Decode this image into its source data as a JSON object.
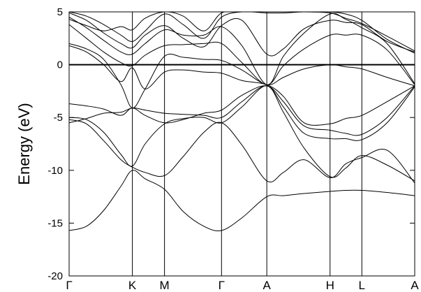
{
  "chart_data": {
    "type": "line",
    "title": "",
    "xlabel": "",
    "ylabel": "Energy (eV)",
    "ylim": [
      -20,
      5
    ],
    "yticks": [
      5,
      0,
      -5,
      -10,
      -15,
      -20
    ],
    "x_high_symmetry": [
      {
        "label": "Γ",
        "k": 0
      },
      {
        "label": "K",
        "k": 0.183
      },
      {
        "label": "M",
        "k": 0.276
      },
      {
        "label": "Γ",
        "k": 0.441
      },
      {
        "label": "A",
        "k": 0.572
      },
      {
        "label": "H",
        "k": 0.755
      },
      {
        "label": "L",
        "k": 0.847
      },
      {
        "label": "A",
        "k": 1.0
      }
    ],
    "fermi_level": 0,
    "grid": false,
    "series": [
      {
        "x": [
          0,
          0.05,
          0.1,
          0.15,
          0.183,
          0.22,
          0.276,
          0.33,
          0.39,
          0.441,
          0.5,
          0.572,
          0.62,
          0.68,
          0.755,
          0.8,
          0.847,
          0.92,
          1.0
        ],
        "y": [
          -15.7,
          -15.3,
          -13.8,
          -11.5,
          -10.0,
          -10.8,
          -11.8,
          -13.9,
          -15.3,
          -15.7,
          -14.5,
          -12.5,
          -12.4,
          -12.2,
          -12.0,
          -11.9,
          -11.9,
          -12.1,
          -12.4
        ]
      },
      {
        "x": [
          0,
          0.05,
          0.1,
          0.15,
          0.183,
          0.22,
          0.276,
          0.33,
          0.39,
          0.441,
          0.5,
          0.572,
          0.62,
          0.68,
          0.755,
          0.8,
          0.847,
          0.92,
          1.0
        ],
        "y": [
          -5.2,
          -5.6,
          -7.2,
          -9.0,
          -9.7,
          -10.2,
          -10.5,
          -8.7,
          -6.4,
          -5.5,
          -7.6,
          -11.0,
          -10.2,
          -9.0,
          -10.7,
          -9.4,
          -8.8,
          -8.1,
          -11.2
        ]
      },
      {
        "x": [
          0,
          0.05,
          0.1,
          0.15,
          0.183,
          0.22,
          0.276,
          0.33,
          0.39,
          0.441,
          0.5,
          0.572,
          0.62,
          0.68,
          0.755,
          0.8,
          0.847,
          0.92,
          1.0
        ],
        "y": [
          -5.0,
          -5.2,
          -6.4,
          -8.5,
          -9.6,
          -7.5,
          -5.6,
          -5.1,
          -5.0,
          -5.5,
          -4.0,
          -2.0,
          -4.5,
          -7.9,
          -10.6,
          -9.8,
          -8.6,
          -9.5,
          -11.0
        ]
      },
      {
        "x": [
          0,
          0.05,
          0.1,
          0.15,
          0.183,
          0.22,
          0.276,
          0.33,
          0.39,
          0.441,
          0.5,
          0.572,
          0.62,
          0.68,
          0.755,
          0.8,
          0.847,
          0.92,
          1.0
        ],
        "y": [
          -5.5,
          -5.1,
          -4.6,
          -4.5,
          -4.1,
          -4.3,
          -4.6,
          -4.7,
          -4.8,
          -5.0,
          -3.5,
          -2.0,
          -4.0,
          -6.5,
          -7.0,
          -7.0,
          -7.1,
          -5.5,
          -2.1
        ]
      },
      {
        "x": [
          0,
          0.05,
          0.1,
          0.15,
          0.183,
          0.22,
          0.276,
          0.33,
          0.39,
          0.441,
          0.5,
          0.572,
          0.62,
          0.68,
          0.755,
          0.8,
          0.847,
          0.92,
          1.0
        ],
        "y": [
          -3.7,
          -3.9,
          -4.2,
          -4.8,
          -4.1,
          -4.8,
          -5.5,
          -5.2,
          -4.6,
          -4.3,
          -2.9,
          -2.0,
          -3.5,
          -5.8,
          -6.2,
          -6.5,
          -6.6,
          -5.0,
          -2.0
        ]
      },
      {
        "x": [
          0,
          0.05,
          0.1,
          0.15,
          0.183,
          0.22,
          0.276,
          0.33,
          0.39,
          0.441,
          0.5,
          0.572,
          0.62,
          0.68,
          0.755,
          0.8,
          0.847,
          0.92,
          1.0
        ],
        "y": [
          1.8,
          1.2,
          0.0,
          -1.6,
          -0.3,
          -2.3,
          -0.7,
          -0.5,
          -0.7,
          -0.8,
          -1.5,
          -1.9,
          -3.0,
          -5.5,
          -5.6,
          -5.1,
          -4.8,
          -3.5,
          -2.0
        ]
      },
      {
        "x": [
          0,
          0.05,
          0.1,
          0.15,
          0.183,
          0.22,
          0.276,
          0.33,
          0.39,
          0.441,
          0.5,
          0.572,
          0.62,
          0.68,
          0.755,
          0.8,
          0.847,
          0.92,
          1.0
        ],
        "y": [
          2.0,
          1.5,
          0.5,
          -1.9,
          -4.1,
          -2.3,
          0.8,
          0.7,
          0.5,
          0.4,
          -0.5,
          -1.9,
          -1.2,
          -0.4,
          0.0,
          -0.2,
          -0.4,
          -1.2,
          -2.0
        ]
      },
      {
        "x": [
          0,
          0.05,
          0.1,
          0.15,
          0.183,
          0.22,
          0.276,
          0.33,
          0.39,
          0.441,
          0.5,
          0.572,
          0.62,
          0.68,
          0.755,
          0.8,
          0.847,
          0.92,
          1.0
        ],
        "y": [
          3.8,
          2.5,
          1.2,
          0.2,
          -0.1,
          0.9,
          1.8,
          1.9,
          2.0,
          2.0,
          0.2,
          -1.9,
          -0.1,
          1.5,
          2.8,
          2.8,
          2.8,
          1.4,
          -1.9
        ]
      },
      {
        "x": [
          0,
          0.05,
          0.1,
          0.15,
          0.183,
          0.22,
          0.276,
          0.33,
          0.39,
          0.441,
          0.5,
          0.572,
          0.62,
          0.68,
          0.755,
          0.8,
          0.847,
          0.92,
          1.0
        ],
        "y": [
          4.5,
          3.5,
          2.3,
          1.2,
          1.0,
          2.0,
          3.3,
          2.8,
          2.8,
          3.6,
          1.8,
          -1.9,
          0.8,
          3.0,
          4.8,
          4.3,
          3.5,
          2.0,
          -1.8
        ]
      },
      {
        "x": [
          0,
          0.05,
          0.1,
          0.15,
          0.183,
          0.22,
          0.276,
          0.33,
          0.39,
          0.441,
          0.5,
          0.572,
          0.62,
          0.68,
          0.755,
          0.8,
          0.847,
          0.92,
          1.0
        ],
        "y": [
          4.9,
          4.2,
          3.0,
          2.0,
          1.6,
          2.8,
          3.7,
          2.5,
          1.7,
          3.7,
          4.2,
          1.0,
          1.5,
          3.4,
          4.2,
          4.0,
          3.8,
          2.2,
          1.2
        ]
      },
      {
        "x": [
          0,
          0.05,
          0.1,
          0.15,
          0.183,
          0.22,
          0.276,
          0.33,
          0.39,
          0.441,
          0.5,
          0.572,
          0.62,
          0.68,
          0.755,
          0.8,
          0.847,
          0.92,
          1.0
        ],
        "y": [
          5.0,
          4.6,
          3.8,
          2.8,
          2.2,
          3.2,
          4.8,
          3.8,
          2.5,
          4.5,
          5.0,
          4.9,
          4.9,
          5.0,
          5.0,
          4.8,
          4.2,
          2.4,
          1.1
        ]
      },
      {
        "x": [
          0,
          0.05,
          0.1,
          0.15,
          0.183,
          0.22,
          0.276,
          0.33,
          0.39,
          0.441,
          0.5,
          0.572,
          0.62,
          0.68,
          0.755,
          0.8,
          0.847,
          0.92,
          1.0
        ],
        "y": [
          4.3,
          3.7,
          3.2,
          3.6,
          3.3,
          4.4,
          5.0,
          4.6,
          3.2,
          4.9,
          5.0,
          5.0,
          5.0,
          5.0,
          4.9,
          4.4,
          3.9,
          2.7,
          1.3
        ]
      }
    ]
  }
}
